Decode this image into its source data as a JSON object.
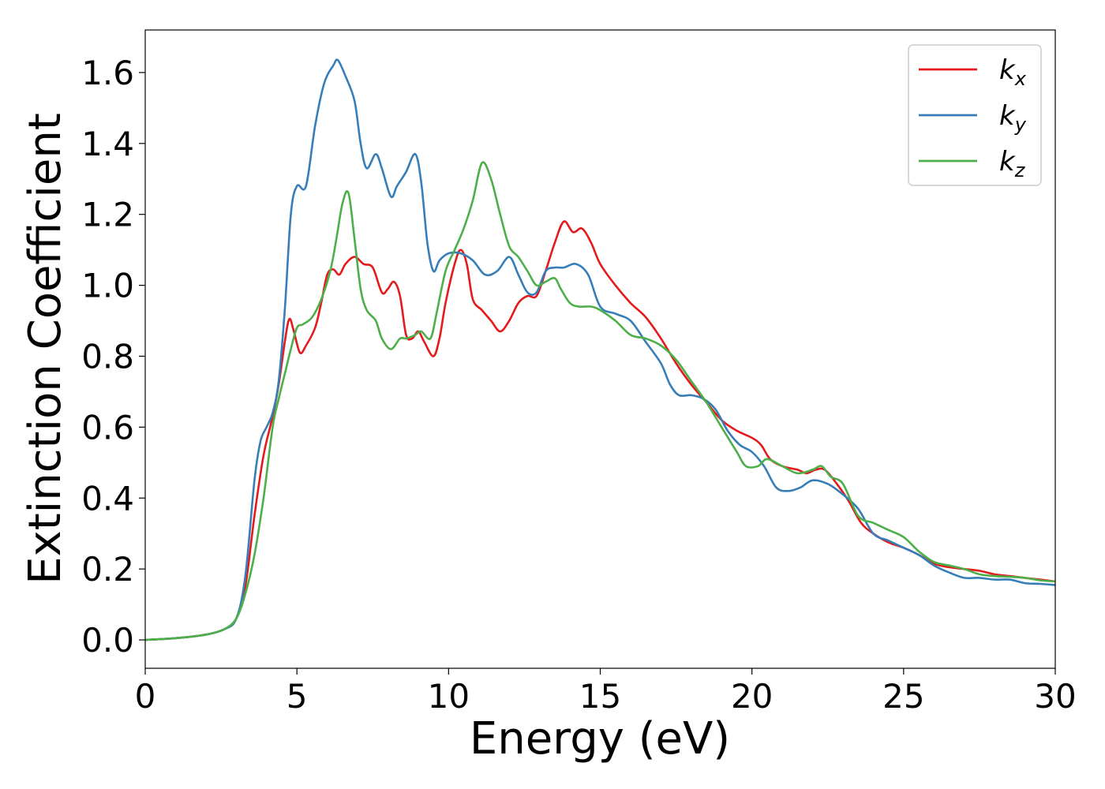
{
  "chart_data": {
    "type": "line",
    "title": "",
    "xlabel": "Energy (eV)",
    "ylabel": "Extinction Coefficient",
    "xlim": [
      0,
      30
    ],
    "ylim": [
      -0.08,
      1.72
    ],
    "xticks": [
      0,
      5,
      10,
      15,
      20,
      25,
      30
    ],
    "xtick_labels": [
      "0",
      "5",
      "10",
      "15",
      "20",
      "25",
      "30"
    ],
    "yticks": [
      0.0,
      0.2,
      0.4,
      0.6,
      0.8,
      1.0,
      1.2,
      1.4,
      1.6
    ],
    "ytick_labels": [
      "0.0",
      "0.2",
      "0.4",
      "0.6",
      "0.8",
      "1.0",
      "1.2",
      "1.4",
      "1.6"
    ],
    "grid": false,
    "legend_position": "top-right",
    "series": [
      {
        "name": "k_x",
        "label_base": "k",
        "label_sub": "x",
        "color": "#e41a1c",
        "points": [
          [
            0,
            0.0
          ],
          [
            1,
            0.005
          ],
          [
            2,
            0.015
          ],
          [
            2.6,
            0.03
          ],
          [
            3.0,
            0.06
          ],
          [
            3.3,
            0.15
          ],
          [
            3.6,
            0.35
          ],
          [
            3.9,
            0.52
          ],
          [
            4.2,
            0.63
          ],
          [
            4.4,
            0.72
          ],
          [
            4.6,
            0.84
          ],
          [
            4.75,
            0.905
          ],
          [
            4.9,
            0.87
          ],
          [
            5.1,
            0.81
          ],
          [
            5.3,
            0.83
          ],
          [
            5.6,
            0.88
          ],
          [
            5.8,
            0.95
          ],
          [
            6.0,
            1.03
          ],
          [
            6.2,
            1.045
          ],
          [
            6.4,
            1.03
          ],
          [
            6.6,
            1.06
          ],
          [
            6.9,
            1.08
          ],
          [
            7.2,
            1.06
          ],
          [
            7.5,
            1.05
          ],
          [
            7.8,
            0.98
          ],
          [
            8.0,
            0.99
          ],
          [
            8.2,
            1.01
          ],
          [
            8.4,
            0.97
          ],
          [
            8.6,
            0.86
          ],
          [
            8.8,
            0.85
          ],
          [
            9.0,
            0.87
          ],
          [
            9.2,
            0.84
          ],
          [
            9.5,
            0.8
          ],
          [
            9.7,
            0.85
          ],
          [
            9.9,
            0.95
          ],
          [
            10.2,
            1.06
          ],
          [
            10.4,
            1.1
          ],
          [
            10.6,
            1.06
          ],
          [
            10.8,
            0.96
          ],
          [
            11.1,
            0.93
          ],
          [
            11.4,
            0.9
          ],
          [
            11.7,
            0.87
          ],
          [
            12.0,
            0.9
          ],
          [
            12.3,
            0.95
          ],
          [
            12.6,
            0.97
          ],
          [
            12.9,
            0.97
          ],
          [
            13.2,
            1.04
          ],
          [
            13.5,
            1.12
          ],
          [
            13.8,
            1.18
          ],
          [
            14.1,
            1.15
          ],
          [
            14.4,
            1.16
          ],
          [
            14.7,
            1.12
          ],
          [
            15.0,
            1.06
          ],
          [
            15.5,
            1.0
          ],
          [
            16.0,
            0.95
          ],
          [
            16.5,
            0.91
          ],
          [
            17.0,
            0.85
          ],
          [
            17.5,
            0.78
          ],
          [
            18.0,
            0.72
          ],
          [
            18.5,
            0.67
          ],
          [
            19.0,
            0.62
          ],
          [
            19.5,
            0.59
          ],
          [
            20.0,
            0.57
          ],
          [
            20.3,
            0.55
          ],
          [
            20.6,
            0.51
          ],
          [
            21.0,
            0.49
          ],
          [
            21.5,
            0.48
          ],
          [
            21.8,
            0.47
          ],
          [
            22.1,
            0.48
          ],
          [
            22.4,
            0.48
          ],
          [
            22.8,
            0.44
          ],
          [
            23.2,
            0.39
          ],
          [
            23.6,
            0.33
          ],
          [
            24.0,
            0.3
          ],
          [
            24.5,
            0.275
          ],
          [
            25.0,
            0.26
          ],
          [
            25.5,
            0.24
          ],
          [
            26.0,
            0.215
          ],
          [
            26.5,
            0.205
          ],
          [
            27.0,
            0.2
          ],
          [
            27.5,
            0.195
          ],
          [
            28.0,
            0.185
          ],
          [
            28.5,
            0.18
          ],
          [
            29.0,
            0.175
          ],
          [
            29.5,
            0.17
          ],
          [
            30.0,
            0.165
          ]
        ]
      },
      {
        "name": "k_y",
        "label_base": "k",
        "label_sub": "y",
        "color": "#377eb8",
        "points": [
          [
            0,
            0.0
          ],
          [
            1,
            0.005
          ],
          [
            2,
            0.015
          ],
          [
            2.6,
            0.03
          ],
          [
            3.0,
            0.06
          ],
          [
            3.3,
            0.18
          ],
          [
            3.6,
            0.45
          ],
          [
            3.8,
            0.56
          ],
          [
            4.0,
            0.6
          ],
          [
            4.2,
            0.64
          ],
          [
            4.4,
            0.73
          ],
          [
            4.6,
            0.93
          ],
          [
            4.8,
            1.2
          ],
          [
            5.0,
            1.28
          ],
          [
            5.3,
            1.28
          ],
          [
            5.6,
            1.45
          ],
          [
            5.9,
            1.57
          ],
          [
            6.2,
            1.62
          ],
          [
            6.35,
            1.635
          ],
          [
            6.6,
            1.59
          ],
          [
            6.9,
            1.52
          ],
          [
            7.1,
            1.4
          ],
          [
            7.3,
            1.33
          ],
          [
            7.6,
            1.37
          ],
          [
            7.8,
            1.33
          ],
          [
            8.1,
            1.25
          ],
          [
            8.3,
            1.28
          ],
          [
            8.6,
            1.32
          ],
          [
            8.9,
            1.37
          ],
          [
            9.1,
            1.29
          ],
          [
            9.3,
            1.12
          ],
          [
            9.5,
            1.04
          ],
          [
            9.7,
            1.07
          ],
          [
            10.0,
            1.09
          ],
          [
            10.4,
            1.09
          ],
          [
            10.8,
            1.07
          ],
          [
            11.2,
            1.03
          ],
          [
            11.6,
            1.04
          ],
          [
            12.0,
            1.08
          ],
          [
            12.3,
            1.03
          ],
          [
            12.6,
            0.98
          ],
          [
            12.9,
            0.98
          ],
          [
            13.2,
            1.04
          ],
          [
            13.5,
            1.05
          ],
          [
            13.8,
            1.05
          ],
          [
            14.2,
            1.06
          ],
          [
            14.6,
            1.03
          ],
          [
            15.0,
            0.94
          ],
          [
            15.5,
            0.92
          ],
          [
            16.0,
            0.9
          ],
          [
            16.5,
            0.84
          ],
          [
            17.0,
            0.78
          ],
          [
            17.3,
            0.72
          ],
          [
            17.6,
            0.69
          ],
          [
            18.0,
            0.69
          ],
          [
            18.4,
            0.68
          ],
          [
            18.8,
            0.65
          ],
          [
            19.2,
            0.59
          ],
          [
            19.6,
            0.55
          ],
          [
            20.0,
            0.53
          ],
          [
            20.4,
            0.49
          ],
          [
            20.8,
            0.43
          ],
          [
            21.2,
            0.42
          ],
          [
            21.6,
            0.43
          ],
          [
            22.0,
            0.45
          ],
          [
            22.5,
            0.44
          ],
          [
            23.0,
            0.41
          ],
          [
            23.5,
            0.37
          ],
          [
            24.0,
            0.3
          ],
          [
            24.5,
            0.28
          ],
          [
            25.0,
            0.26
          ],
          [
            25.5,
            0.24
          ],
          [
            26.0,
            0.21
          ],
          [
            26.5,
            0.19
          ],
          [
            27.0,
            0.175
          ],
          [
            27.5,
            0.175
          ],
          [
            28.0,
            0.17
          ],
          [
            28.5,
            0.17
          ],
          [
            29.0,
            0.16
          ],
          [
            29.5,
            0.158
          ],
          [
            30.0,
            0.155
          ]
        ]
      },
      {
        "name": "k_z",
        "label_base": "k",
        "label_sub": "z",
        "color": "#4daf4a",
        "points": [
          [
            0,
            0.0
          ],
          [
            1,
            0.005
          ],
          [
            2,
            0.015
          ],
          [
            2.6,
            0.03
          ],
          [
            3.0,
            0.06
          ],
          [
            3.3,
            0.13
          ],
          [
            3.6,
            0.24
          ],
          [
            3.9,
            0.4
          ],
          [
            4.2,
            0.6
          ],
          [
            4.4,
            0.68
          ],
          [
            4.6,
            0.75
          ],
          [
            4.8,
            0.82
          ],
          [
            5.0,
            0.88
          ],
          [
            5.2,
            0.89
          ],
          [
            5.5,
            0.91
          ],
          [
            5.8,
            0.96
          ],
          [
            6.1,
            1.04
          ],
          [
            6.3,
            1.13
          ],
          [
            6.5,
            1.23
          ],
          [
            6.7,
            1.26
          ],
          [
            6.9,
            1.13
          ],
          [
            7.1,
            0.99
          ],
          [
            7.3,
            0.93
          ],
          [
            7.6,
            0.9
          ],
          [
            7.8,
            0.85
          ],
          [
            8.1,
            0.82
          ],
          [
            8.4,
            0.85
          ],
          [
            8.6,
            0.85
          ],
          [
            8.9,
            0.86
          ],
          [
            9.1,
            0.87
          ],
          [
            9.4,
            0.85
          ],
          [
            9.6,
            0.92
          ],
          [
            9.9,
            1.04
          ],
          [
            10.2,
            1.1
          ],
          [
            10.5,
            1.16
          ],
          [
            10.8,
            1.24
          ],
          [
            11.1,
            1.345
          ],
          [
            11.4,
            1.3
          ],
          [
            11.7,
            1.2
          ],
          [
            12.0,
            1.11
          ],
          [
            12.3,
            1.08
          ],
          [
            12.6,
            1.04
          ],
          [
            12.9,
            1.0
          ],
          [
            13.2,
            1.01
          ],
          [
            13.5,
            1.02
          ],
          [
            13.7,
            0.99
          ],
          [
            14.0,
            0.95
          ],
          [
            14.3,
            0.94
          ],
          [
            14.7,
            0.94
          ],
          [
            15.0,
            0.93
          ],
          [
            15.5,
            0.9
          ],
          [
            16.0,
            0.86
          ],
          [
            16.5,
            0.85
          ],
          [
            17.0,
            0.83
          ],
          [
            17.5,
            0.79
          ],
          [
            18.0,
            0.73
          ],
          [
            18.5,
            0.67
          ],
          [
            19.0,
            0.6
          ],
          [
            19.5,
            0.53
          ],
          [
            19.8,
            0.49
          ],
          [
            20.2,
            0.49
          ],
          [
            20.5,
            0.51
          ],
          [
            21.0,
            0.49
          ],
          [
            21.5,
            0.47
          ],
          [
            22.0,
            0.48
          ],
          [
            22.3,
            0.49
          ],
          [
            22.6,
            0.46
          ],
          [
            23.0,
            0.44
          ],
          [
            23.5,
            0.35
          ],
          [
            24.0,
            0.33
          ],
          [
            24.5,
            0.31
          ],
          [
            25.0,
            0.29
          ],
          [
            25.5,
            0.25
          ],
          [
            26.0,
            0.22
          ],
          [
            26.5,
            0.21
          ],
          [
            27.0,
            0.2
          ],
          [
            27.5,
            0.185
          ],
          [
            28.0,
            0.18
          ],
          [
            28.5,
            0.178
          ],
          [
            29.0,
            0.175
          ],
          [
            29.5,
            0.168
          ],
          [
            30.0,
            0.165
          ]
        ]
      }
    ]
  }
}
